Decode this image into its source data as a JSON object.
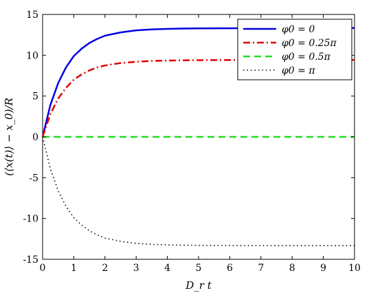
{
  "chart_data": {
    "type": "line",
    "title": "",
    "xlabel": "D_r t",
    "ylabel": "(⟨x(t)⟩ − x_0)/R",
    "xlim": [
      0,
      10
    ],
    "ylim": [
      -15,
      15
    ],
    "x_ticks": [
      0,
      1,
      2,
      3,
      4,
      5,
      6,
      7,
      8,
      9,
      10
    ],
    "y_ticks": [
      -15,
      -10,
      -5,
      0,
      5,
      10,
      15
    ],
    "grid": false,
    "legend_position": "top-right",
    "x": [
      0,
      0.25,
      0.5,
      0.75,
      1,
      1.25,
      1.5,
      1.75,
      2,
      2.5,
      3,
      3.5,
      4,
      4.5,
      5,
      6,
      7,
      8,
      9,
      10
    ],
    "series": [
      {
        "name": "φ0 = 0",
        "color": "#0000e0",
        "dash": "solid",
        "values": [
          0,
          3.9,
          6.6,
          8.5,
          9.9,
          10.8,
          11.5,
          12.0,
          12.4,
          12.8,
          13.05,
          13.17,
          13.23,
          13.27,
          13.29,
          13.31,
          13.32,
          13.33,
          13.33,
          13.33
        ]
      },
      {
        "name": "φ0 = 0.25π",
        "color": "#e00000",
        "dash": "dashdot",
        "values": [
          0,
          2.8,
          4.7,
          6.0,
          7.0,
          7.65,
          8.15,
          8.5,
          8.75,
          9.05,
          9.2,
          9.3,
          9.35,
          9.38,
          9.4,
          9.42,
          9.43,
          9.43,
          9.43,
          9.43
        ]
      },
      {
        "name": "φ0 = 0.5π",
        "color": "#22dd22",
        "dash": "dashed",
        "values": [
          0,
          0,
          0,
          0,
          0,
          0,
          0,
          0,
          0,
          0,
          0,
          0,
          0,
          0,
          0,
          0,
          0,
          0,
          0,
          0
        ]
      },
      {
        "name": "φ0 = π",
        "color": "#000000",
        "dash": "dotted",
        "values": [
          0,
          -3.9,
          -6.6,
          -8.5,
          -9.9,
          -10.8,
          -11.5,
          -12.0,
          -12.4,
          -12.8,
          -13.05,
          -13.17,
          -13.23,
          -13.27,
          -13.29,
          -13.31,
          -13.32,
          -13.33,
          -13.33,
          -13.33
        ]
      }
    ]
  }
}
